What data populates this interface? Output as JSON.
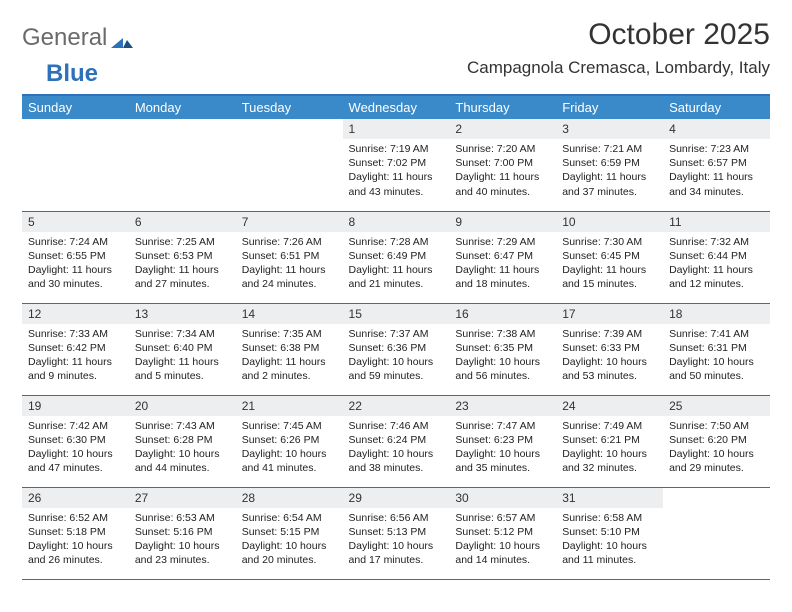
{
  "brand": {
    "part1": "General",
    "part2": "Blue"
  },
  "title": "October 2025",
  "location": "Campagnola Cremasca, Lombardy, Italy",
  "colors": {
    "header_bg": "#3a8ac9",
    "header_text": "#ffffff",
    "rule": "#2d72b8",
    "daynum_bg": "#eceef0",
    "text": "#222222",
    "background": "#ffffff"
  },
  "typography": {
    "title_fontsize": 30,
    "location_fontsize": 17,
    "dayheader_fontsize": 13,
    "daynum_fontsize": 12,
    "body_fontsize": 10.5
  },
  "day_headers": [
    "Sunday",
    "Monday",
    "Tuesday",
    "Wednesday",
    "Thursday",
    "Friday",
    "Saturday"
  ],
  "weeks": [
    [
      null,
      null,
      null,
      {
        "n": "1",
        "sunrise": "7:19 AM",
        "sunset": "7:02 PM",
        "day_h": 11,
        "day_m": 43
      },
      {
        "n": "2",
        "sunrise": "7:20 AM",
        "sunset": "7:00 PM",
        "day_h": 11,
        "day_m": 40
      },
      {
        "n": "3",
        "sunrise": "7:21 AM",
        "sunset": "6:59 PM",
        "day_h": 11,
        "day_m": 37
      },
      {
        "n": "4",
        "sunrise": "7:23 AM",
        "sunset": "6:57 PM",
        "day_h": 11,
        "day_m": 34
      }
    ],
    [
      {
        "n": "5",
        "sunrise": "7:24 AM",
        "sunset": "6:55 PM",
        "day_h": 11,
        "day_m": 30
      },
      {
        "n": "6",
        "sunrise": "7:25 AM",
        "sunset": "6:53 PM",
        "day_h": 11,
        "day_m": 27
      },
      {
        "n": "7",
        "sunrise": "7:26 AM",
        "sunset": "6:51 PM",
        "day_h": 11,
        "day_m": 24
      },
      {
        "n": "8",
        "sunrise": "7:28 AM",
        "sunset": "6:49 PM",
        "day_h": 11,
        "day_m": 21
      },
      {
        "n": "9",
        "sunrise": "7:29 AM",
        "sunset": "6:47 PM",
        "day_h": 11,
        "day_m": 18
      },
      {
        "n": "10",
        "sunrise": "7:30 AM",
        "sunset": "6:45 PM",
        "day_h": 11,
        "day_m": 15
      },
      {
        "n": "11",
        "sunrise": "7:32 AM",
        "sunset": "6:44 PM",
        "day_h": 11,
        "day_m": 12
      }
    ],
    [
      {
        "n": "12",
        "sunrise": "7:33 AM",
        "sunset": "6:42 PM",
        "day_h": 11,
        "day_m": 9
      },
      {
        "n": "13",
        "sunrise": "7:34 AM",
        "sunset": "6:40 PM",
        "day_h": 11,
        "day_m": 5
      },
      {
        "n": "14",
        "sunrise": "7:35 AM",
        "sunset": "6:38 PM",
        "day_h": 11,
        "day_m": 2
      },
      {
        "n": "15",
        "sunrise": "7:37 AM",
        "sunset": "6:36 PM",
        "day_h": 10,
        "day_m": 59
      },
      {
        "n": "16",
        "sunrise": "7:38 AM",
        "sunset": "6:35 PM",
        "day_h": 10,
        "day_m": 56
      },
      {
        "n": "17",
        "sunrise": "7:39 AM",
        "sunset": "6:33 PM",
        "day_h": 10,
        "day_m": 53
      },
      {
        "n": "18",
        "sunrise": "7:41 AM",
        "sunset": "6:31 PM",
        "day_h": 10,
        "day_m": 50
      }
    ],
    [
      {
        "n": "19",
        "sunrise": "7:42 AM",
        "sunset": "6:30 PM",
        "day_h": 10,
        "day_m": 47
      },
      {
        "n": "20",
        "sunrise": "7:43 AM",
        "sunset": "6:28 PM",
        "day_h": 10,
        "day_m": 44
      },
      {
        "n": "21",
        "sunrise": "7:45 AM",
        "sunset": "6:26 PM",
        "day_h": 10,
        "day_m": 41
      },
      {
        "n": "22",
        "sunrise": "7:46 AM",
        "sunset": "6:24 PM",
        "day_h": 10,
        "day_m": 38
      },
      {
        "n": "23",
        "sunrise": "7:47 AM",
        "sunset": "6:23 PM",
        "day_h": 10,
        "day_m": 35
      },
      {
        "n": "24",
        "sunrise": "7:49 AM",
        "sunset": "6:21 PM",
        "day_h": 10,
        "day_m": 32
      },
      {
        "n": "25",
        "sunrise": "7:50 AM",
        "sunset": "6:20 PM",
        "day_h": 10,
        "day_m": 29
      }
    ],
    [
      {
        "n": "26",
        "sunrise": "6:52 AM",
        "sunset": "5:18 PM",
        "day_h": 10,
        "day_m": 26
      },
      {
        "n": "27",
        "sunrise": "6:53 AM",
        "sunset": "5:16 PM",
        "day_h": 10,
        "day_m": 23
      },
      {
        "n": "28",
        "sunrise": "6:54 AM",
        "sunset": "5:15 PM",
        "day_h": 10,
        "day_m": 20
      },
      {
        "n": "29",
        "sunrise": "6:56 AM",
        "sunset": "5:13 PM",
        "day_h": 10,
        "day_m": 17
      },
      {
        "n": "30",
        "sunrise": "6:57 AM",
        "sunset": "5:12 PM",
        "day_h": 10,
        "day_m": 14
      },
      {
        "n": "31",
        "sunrise": "6:58 AM",
        "sunset": "5:10 PM",
        "day_h": 10,
        "day_m": 11
      },
      null
    ]
  ],
  "labels": {
    "sunrise": "Sunrise:",
    "sunset": "Sunset:",
    "daylight_prefix": "Daylight:",
    "hours_word": "hours",
    "and_word": "and",
    "minutes_word": "minutes."
  }
}
